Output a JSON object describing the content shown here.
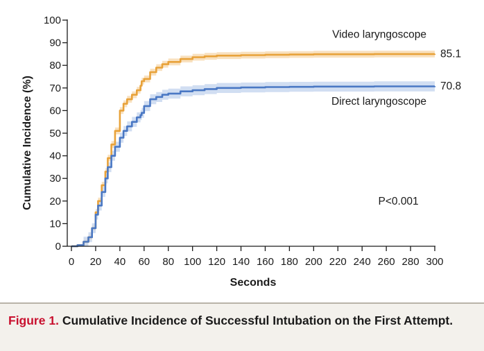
{
  "chart_data": {
    "type": "line",
    "xlabel": "Seconds",
    "ylabel": "Cumulative Incidence (%)",
    "xlim": [
      0,
      300
    ],
    "ylim": [
      0,
      100
    ],
    "x_ticks": [
      0,
      20,
      40,
      60,
      80,
      100,
      120,
      140,
      160,
      180,
      200,
      220,
      240,
      260,
      280,
      300
    ],
    "y_ticks": [
      0,
      10,
      20,
      30,
      40,
      50,
      60,
      70,
      80,
      90,
      100
    ],
    "series": [
      {
        "name": "Video laryngoscope",
        "end_label": "85.1",
        "color": "#e8a23a",
        "band_color": "#f8dcb4",
        "x": [
          0,
          5,
          10,
          14,
          17,
          20,
          22,
          25,
          28,
          30,
          33,
          36,
          40,
          43,
          46,
          50,
          54,
          57,
          58,
          60,
          65,
          70,
          75,
          80,
          90,
          100,
          110,
          120,
          140,
          160,
          180,
          200,
          250,
          300
        ],
        "y": [
          0,
          0.5,
          2,
          4,
          8,
          15,
          20,
          27,
          33,
          39,
          45,
          51,
          60,
          63,
          65,
          67,
          69,
          71,
          73,
          74,
          77,
          79,
          80.5,
          81.5,
          82.8,
          83.6,
          84,
          84.3,
          84.5,
          84.7,
          84.8,
          84.9,
          85,
          85.1
        ],
        "band": 1.5
      },
      {
        "name": "Direct laryngoscope",
        "end_label": "70.8",
        "color": "#4a78c4",
        "band_color": "#c9d8f0",
        "x": [
          0,
          5,
          10,
          14,
          17,
          20,
          22,
          25,
          28,
          30,
          33,
          36,
          40,
          43,
          46,
          50,
          54,
          57,
          58,
          60,
          65,
          70,
          75,
          80,
          90,
          100,
          110,
          120,
          140,
          160,
          180,
          200,
          250,
          300
        ],
        "y": [
          0,
          0.5,
          2,
          4,
          8,
          14,
          18,
          24,
          30,
          35,
          40,
          44,
          48,
          51,
          53,
          55,
          57,
          58,
          59,
          62,
          65,
          66,
          67,
          67.5,
          68.5,
          69,
          69.5,
          70,
          70.2,
          70.4,
          70.5,
          70.6,
          70.7,
          70.8
        ],
        "band": 2.2
      }
    ],
    "annotations": [
      {
        "text": "P<0.001",
        "x": 270,
        "y": 20
      }
    ]
  },
  "caption": {
    "label": "Figure 1.",
    "text": "Cumulative Incidence of Successful Intubation on the First Attempt."
  }
}
